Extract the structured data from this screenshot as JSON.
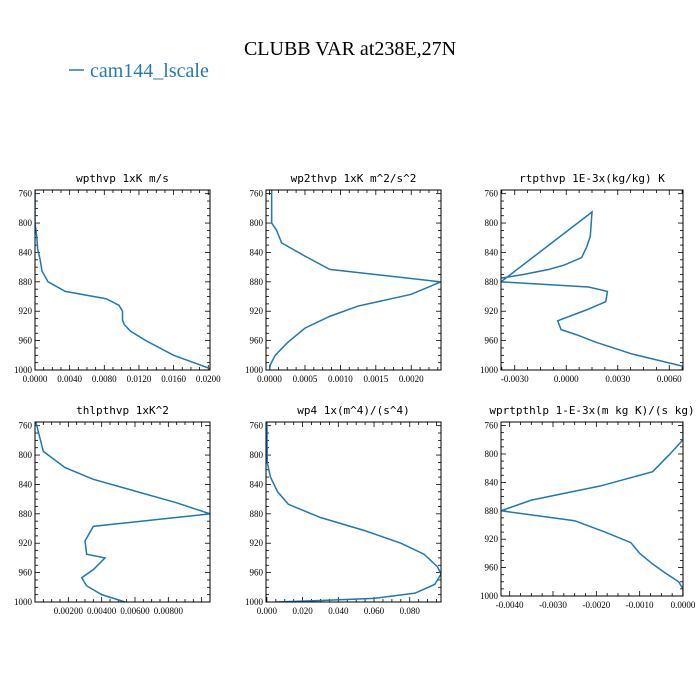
{
  "figure": {
    "title": "CLUBB VAR at238E,27N",
    "legend": {
      "label": "cam144_lscale",
      "color": "#2878b4"
    }
  },
  "chart_data": [
    {
      "type": "line",
      "title": "wpthvp  1xK m/s",
      "xlim": [
        0,
        0.0202
      ],
      "ylim": [
        1000,
        755
      ],
      "xticks": [
        0,
        0.004,
        0.008,
        0.012,
        0.016,
        0.02
      ],
      "xtick_labels": [
        "0.0000",
        "0.0040",
        "0.0080",
        "0.0120",
        "0.0160",
        "0.0200"
      ],
      "yticks": [
        760,
        800,
        840,
        880,
        920,
        960,
        1000
      ],
      "series": [
        {
          "color": "#1f77b4",
          "x": [
            0,
            0,
            0.0002,
            0.0003,
            0.0006,
            0.0008,
            0.0015,
            0.0035,
            0.0082,
            0.0097,
            0.0101,
            0.0101,
            0.0103,
            0.011,
            0.0128,
            0.016,
            0.0202
          ],
          "y": [
            755,
            800,
            818,
            835,
            850,
            865,
            880,
            893,
            903,
            912,
            920,
            932,
            938,
            947,
            960,
            980,
            998
          ]
        }
      ]
    },
    {
      "type": "line",
      "title": "wp2thvp  1xK m^2/s^2",
      "xlim": [
        -5e-05,
        0.00242
      ],
      "ylim": [
        1000,
        755
      ],
      "xticks": [
        0,
        0.0005,
        0.001,
        0.0015,
        0.002
      ],
      "xtick_labels": [
        "0.0000",
        "0.0005",
        "0.0010",
        "0.0015",
        "0.0020"
      ],
      "yticks": [
        760,
        800,
        840,
        880,
        920,
        960,
        1000
      ],
      "series": [
        {
          "color": "#1f77b4",
          "x": [
            3e-05,
            3e-05,
            0.0001,
            0.00017,
            0.0005,
            0.00085,
            0.00242,
            0.002,
            0.00125,
            0.00085,
            0.0005,
            0.00025,
            8e-05,
            1e-05,
            0
          ],
          "y": [
            755,
            800,
            810,
            827,
            845,
            863,
            880,
            897,
            913,
            927,
            943,
            963,
            980,
            993,
            1000
          ]
        }
      ]
    },
    {
      "type": "line",
      "title": "rtpthvp  1E-3x(kg/kg) K",
      "xlim": [
        -0.0038,
        0.0068
      ],
      "ylim": [
        1000,
        755
      ],
      "xticks": [
        -0.003,
        0,
        0.003,
        0.006
      ],
      "xtick_labels": [
        "-0.0030",
        "0.0000",
        "0.0030",
        "0.0060"
      ],
      "yticks": [
        760,
        800,
        840,
        880,
        920,
        960,
        1000
      ],
      "series": [
        {
          "color": "#1f77b4",
          "x": [
            -0.0038,
            -0.0025,
            -0.001,
            -0.0001,
            0.0009,
            0.0012,
            0.0014,
            0.0015,
            -0.0038,
            0.0013,
            0.0024,
            0.0023,
            0.0012,
            -0.0005,
            -0.0003,
            0.0006,
            0.0017,
            0.0038,
            0.0068,
            0.0068
          ],
          "y": [
            875,
            870,
            863,
            857,
            847,
            832,
            818,
            785,
            880,
            887,
            893,
            907,
            918,
            933,
            945,
            952,
            962,
            978,
            995,
            1000
          ]
        }
      ]
    },
    {
      "type": "line",
      "title": "thlpthvp  1xK^2",
      "xlim": [
        0,
        0.0105
      ],
      "ylim": [
        1000,
        755
      ],
      "xticks": [
        0.002,
        0.004,
        0.006,
        0.008
      ],
      "xtick_labels": [
        "0.00200",
        "0.00400",
        "0.00600",
        "0.00800"
      ],
      "yticks": [
        760,
        800,
        840,
        880,
        920,
        960,
        1000
      ],
      "series": [
        {
          "color": "#1f77b4",
          "x": [
            5e-05,
            0.0005,
            0.0018,
            0.0035,
            0.0085,
            0.0105,
            0.0035,
            0.003,
            0.0031,
            0.0042,
            0.0035,
            0.0028,
            0.0031,
            0.004,
            0.0054
          ],
          "y": [
            755,
            795,
            817,
            833,
            865,
            880,
            897,
            917,
            935,
            940,
            956,
            967,
            978,
            990,
            1000
          ]
        }
      ]
    },
    {
      "type": "line",
      "title": "wp4  1x(m^4)/(s^4)",
      "xlim": [
        -0.0005,
        0.0975
      ],
      "ylim": [
        1000,
        755
      ],
      "xticks": [
        0,
        0.02,
        0.04,
        0.06,
        0.08
      ],
      "xtick_labels": [
        "0.000",
        "0.020",
        "0.040",
        "0.060",
        "0.080"
      ],
      "yticks": [
        760,
        800,
        840,
        880,
        920,
        960,
        1000
      ],
      "series": [
        {
          "color": "#1f77b4",
          "x": [
            0,
            0.0002,
            0.002,
            0.006,
            0.012,
            0.03,
            0.055,
            0.075,
            0.088,
            0.0955,
            0.0975,
            0.094,
            0.083,
            0.06,
            0.03,
            0.005
          ],
          "y": [
            755,
            810,
            830,
            850,
            867,
            885,
            903,
            920,
            935,
            952,
            962,
            976,
            988,
            995,
            998,
            1000
          ]
        }
      ]
    },
    {
      "type": "line",
      "title": "wprtpthlp  1-E-3x(m kg K)/(s kg)",
      "xlim": [
        -0.0042,
        0
      ],
      "ylim": [
        1000,
        755
      ],
      "xticks": [
        -0.004,
        -0.003,
        -0.002,
        -0.001,
        0
      ],
      "xtick_labels": [
        "-0.0040",
        "-0.0030",
        "-0.0020",
        "-0.0010",
        "0.0000"
      ],
      "yticks": [
        760,
        800,
        840,
        880,
        920,
        960,
        1000
      ],
      "series": [
        {
          "color": "#1f77b4",
          "x": [
            0,
            0,
            -0.0003,
            -0.0007,
            -0.0019,
            -0.0035,
            -0.0042,
            -0.0025,
            -0.0018,
            -0.0012,
            -0.001,
            -0.0007,
            -0.0004,
            -0.0001,
            0,
            0
          ],
          "y": [
            755,
            780,
            800,
            825,
            845,
            865,
            880,
            894,
            910,
            925,
            940,
            955,
            968,
            980,
            990,
            1000
          ]
        }
      ]
    }
  ]
}
